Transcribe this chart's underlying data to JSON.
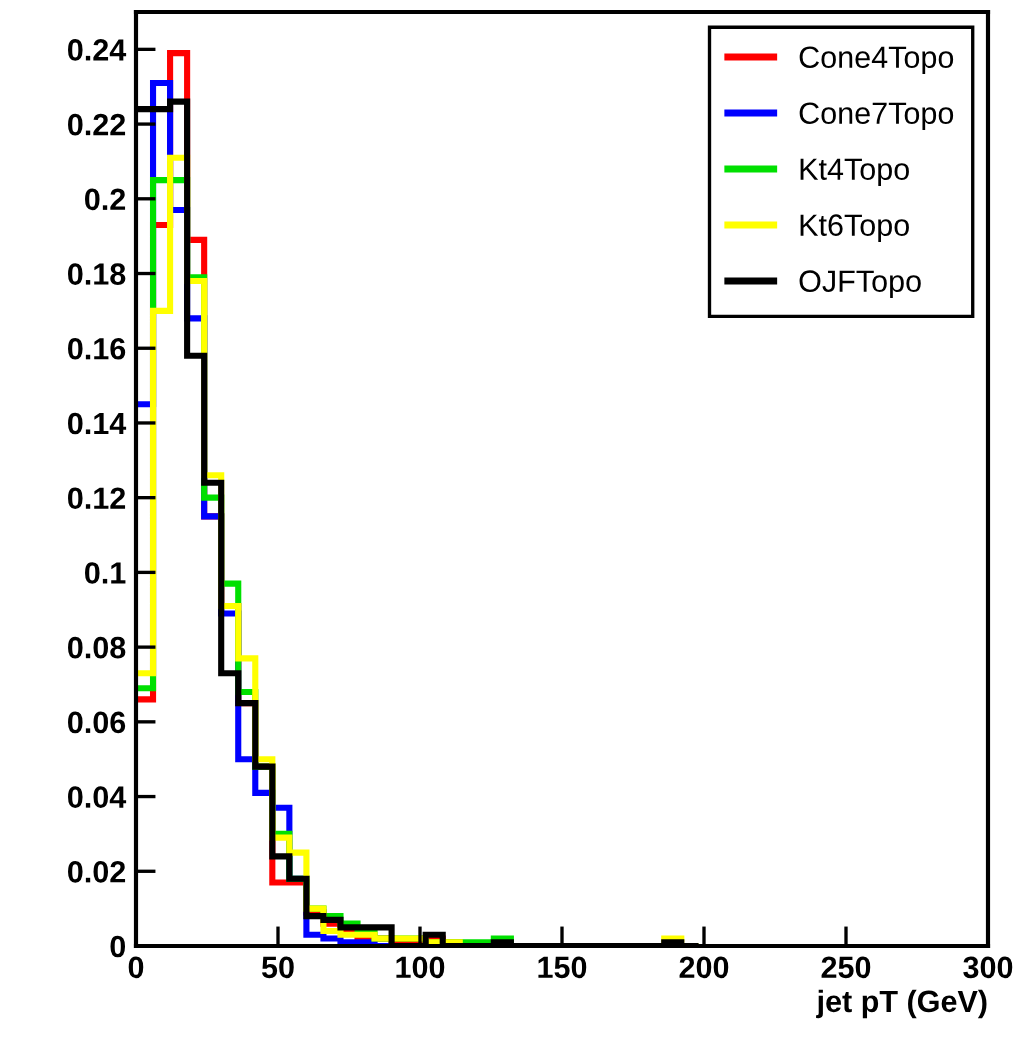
{
  "chart_data": {
    "type": "histogram",
    "xlabel": "jet pT (GeV)",
    "bins": [
      0,
      6,
      12,
      18,
      24,
      30,
      36,
      42,
      48,
      54,
      60,
      66,
      72,
      78,
      84,
      90,
      96,
      102,
      108,
      114,
      120,
      126,
      132,
      138,
      144,
      150,
      156,
      162,
      168,
      174,
      180,
      186,
      192,
      198
    ],
    "series": [
      {
        "name": "Cone4Topo",
        "color": "#ff0000",
        "values": [
          0.066,
          0.193,
          0.239,
          0.189,
          0.115,
          0.091,
          0.065,
          0.048,
          0.017,
          0.017,
          0.009,
          0.006,
          0.004,
          0.002,
          0.002,
          0.001,
          0.001,
          0.002,
          0.001,
          0,
          0,
          0,
          0,
          0,
          0,
          0,
          0,
          0,
          0,
          0,
          0,
          0,
          0
        ]
      },
      {
        "name": "Cone7Topo",
        "color": "#0000ff",
        "values": [
          0.145,
          0.231,
          0.197,
          0.168,
          0.115,
          0.089,
          0.05,
          0.041,
          0.037,
          0.018,
          0.003,
          0.002,
          0.001,
          0.001,
          0,
          0,
          0,
          0,
          0,
          0,
          0,
          0,
          0,
          0,
          0,
          0,
          0,
          0,
          0,
          0,
          0,
          0,
          0
        ]
      },
      {
        "name": "Kt4Topo",
        "color": "#00e000",
        "values": [
          0.069,
          0.205,
          0.205,
          0.179,
          0.12,
          0.097,
          0.068,
          0.048,
          0.03,
          0.018,
          0.01,
          0.008,
          0.006,
          0.004,
          0.002,
          0.002,
          0.002,
          0.001,
          0.001,
          0.001,
          0.001,
          0.002,
          0,
          0,
          0,
          0,
          0,
          0,
          0,
          0,
          0,
          0,
          0
        ]
      },
      {
        "name": "Kt6Topo",
        "color": "#ffff00",
        "values": [
          0.073,
          0.17,
          0.211,
          0.178,
          0.126,
          0.091,
          0.077,
          0.05,
          0.029,
          0.025,
          0.01,
          0.004,
          0.003,
          0.003,
          0.002,
          0.002,
          0.002,
          0.001,
          0.001,
          0,
          0,
          0,
          0,
          0,
          0,
          0,
          0,
          0,
          0,
          0,
          0,
          0.002,
          0
        ]
      },
      {
        "name": "OJFTopo",
        "color": "#000000",
        "values": [
          0.224,
          0.224,
          0.226,
          0.158,
          0.124,
          0.073,
          0.065,
          0.048,
          0.024,
          0.018,
          0.008,
          0.007,
          0.005,
          0.005,
          0.005,
          0,
          0,
          0.003,
          0,
          0,
          0,
          0.001,
          0,
          0,
          0,
          0,
          0,
          0,
          0,
          0,
          0,
          0.001,
          0
        ]
      }
    ],
    "xlim": [
      0,
      300
    ],
    "ylim": [
      0,
      0.25
    ],
    "xticks": [
      0,
      50,
      100,
      150,
      200,
      250,
      300
    ],
    "yticks": [
      0,
      0.02,
      0.04,
      0.06,
      0.08,
      {
        "value": 0.1,
        "label": "0.1"
      },
      0.12,
      0.14,
      0.16,
      0.18,
      {
        "value": 0.2,
        "label": "0.2"
      },
      0.22,
      0.24
    ],
    "grid": false,
    "legend": "top right"
  }
}
